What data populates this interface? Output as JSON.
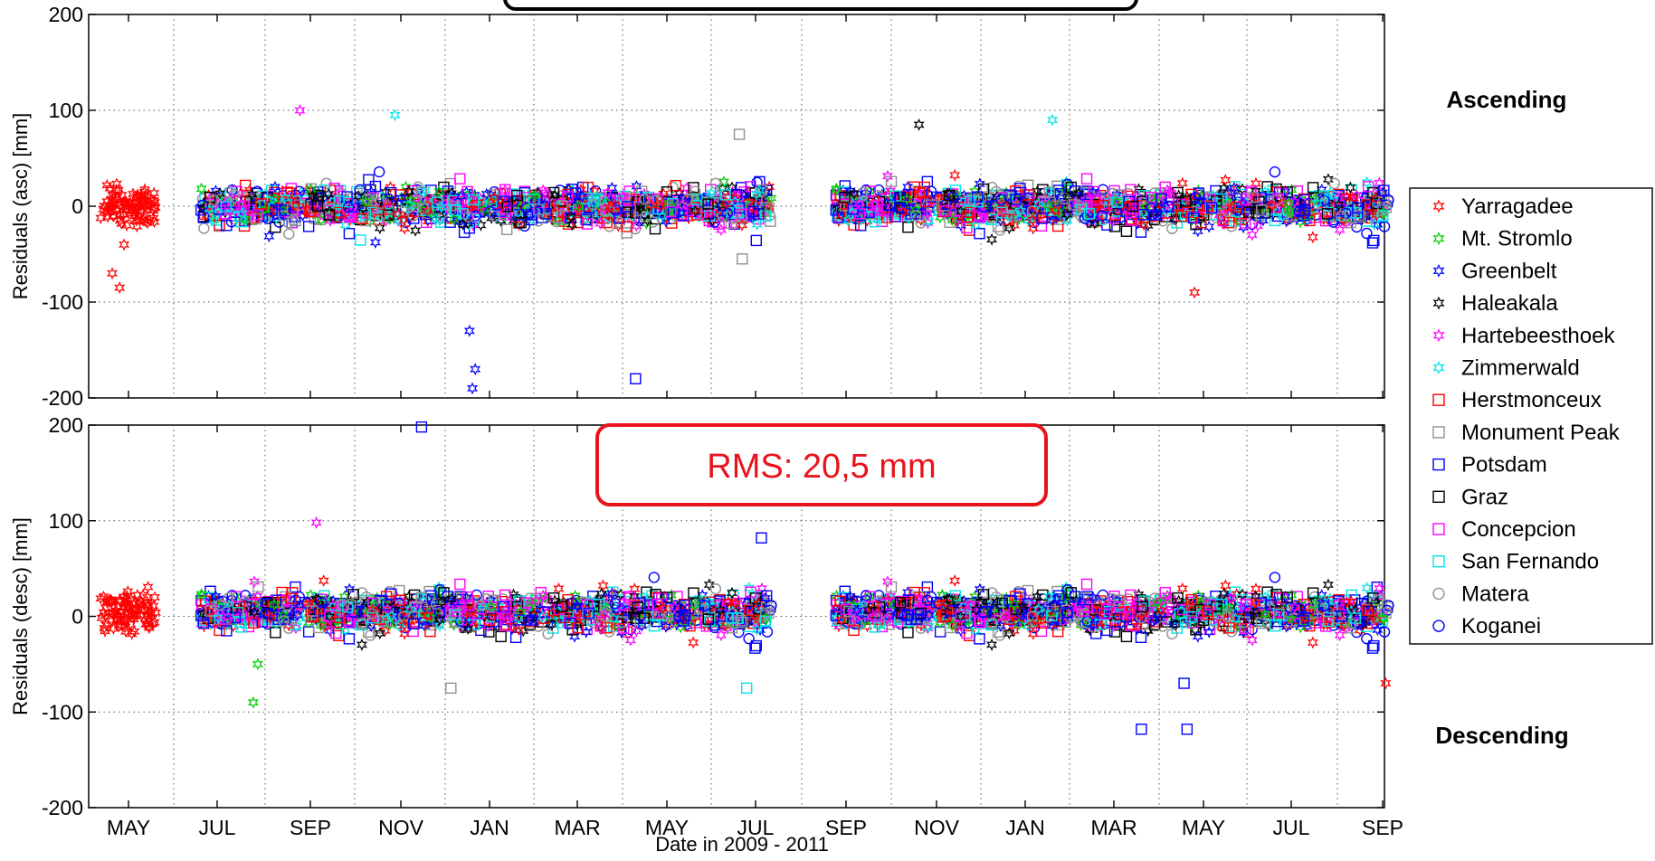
{
  "chart_data": {
    "type": "scatter",
    "xlabel": "Date in 2009 - 2011",
    "x_start": "2009-04",
    "x_end": "2011-09",
    "x_ticks": [
      "MAY",
      "JUL",
      "SEP",
      "NOV",
      "JAN",
      "MAR",
      "MAY",
      "JUL",
      "SEP",
      "NOV",
      "JAN",
      "MAR",
      "MAY",
      "JUL",
      "SEP"
    ],
    "grid": true,
    "legend_placement": "right",
    "annotation": "RMS: 20,5 mm",
    "panels": [
      {
        "id": "asc",
        "ylabel": "Residuals (asc) [mm]",
        "side_label": "Ascending",
        "ylim": [
          -200,
          200
        ],
        "y_ticks": [
          "200",
          "100",
          "0",
          "-100",
          "-200"
        ]
      },
      {
        "id": "desc",
        "ylabel": "Residuals (desc) [mm]",
        "side_label": "Descending",
        "ylim": [
          -200,
          200
        ],
        "y_ticks": [
          "200",
          "100",
          "0",
          "-100",
          "-200"
        ]
      }
    ],
    "series": [
      {
        "name": "Yarragadee",
        "marker": "hexagram",
        "color": "#ff0000"
      },
      {
        "name": "Mt. Stromlo",
        "marker": "hexagram",
        "color": "#00cc00"
      },
      {
        "name": "Greenbelt",
        "marker": "hexagram",
        "color": "#0000ff"
      },
      {
        "name": "Haleakala",
        "marker": "hexagram",
        "color": "#000000"
      },
      {
        "name": "Hartebeesthoek",
        "marker": "hexagram",
        "color": "#ff00ff"
      },
      {
        "name": "Zimmerwald",
        "marker": "hexagram",
        "color": "#00e5e5"
      },
      {
        "name": "Herstmonceux",
        "marker": "square",
        "color": "#ff0000"
      },
      {
        "name": "Monument Peak",
        "marker": "square",
        "color": "#909090"
      },
      {
        "name": "Potsdam",
        "marker": "square",
        "color": "#0000ff"
      },
      {
        "name": "Graz",
        "marker": "square",
        "color": "#000000"
      },
      {
        "name": "Concepcion",
        "marker": "square",
        "color": "#ff00ff"
      },
      {
        "name": "San Fernando",
        "marker": "square",
        "color": "#00e5e5"
      },
      {
        "name": "Matera",
        "marker": "circle",
        "color": "#909090"
      },
      {
        "name": "Koganei",
        "marker": "circle",
        "color": "#0000ff"
      }
    ],
    "data_note_groups": {
      "asc": [
        {
          "s": 0,
          "x": "2009-04-20",
          "y": -70
        },
        {
          "s": 0,
          "x": "2009-04-25",
          "y": -85
        },
        {
          "s": 0,
          "x": "2009-04-28",
          "y": -40
        },
        {
          "s": 2,
          "x": "2009-12-20",
          "y": -190
        },
        {
          "s": 2,
          "x": "2009-12-22",
          "y": -170
        },
        {
          "s": 2,
          "x": "2009-12-18",
          "y": -130
        },
        {
          "s": 8,
          "x": "2010-04-10",
          "y": -180
        },
        {
          "s": 4,
          "x": "2009-08-25",
          "y": 100
        },
        {
          "s": 5,
          "x": "2009-10-28",
          "y": 95
        },
        {
          "s": 3,
          "x": "2010-10-20",
          "y": 85
        },
        {
          "s": 5,
          "x": "2011-01-20",
          "y": 90
        },
        {
          "s": 7,
          "x": "2010-06-20",
          "y": 75
        },
        {
          "s": 7,
          "x": "2010-06-22",
          "y": -55
        },
        {
          "s": 0,
          "x": "2011-04-25",
          "y": -90
        }
      ],
      "desc": [
        {
          "s": 8,
          "x": "2009-11-15",
          "y": 198
        },
        {
          "s": 1,
          "x": "2009-07-25",
          "y": -90
        },
        {
          "s": 1,
          "x": "2009-07-28",
          "y": -50
        },
        {
          "s": 4,
          "x": "2009-09-05",
          "y": 98
        },
        {
          "s": 7,
          "x": "2009-12-05",
          "y": -75
        },
        {
          "s": 11,
          "x": "2010-06-25",
          "y": -75
        },
        {
          "s": 8,
          "x": "2010-07-05",
          "y": 82
        },
        {
          "s": 8,
          "x": "2011-03-20",
          "y": -118
        },
        {
          "s": 8,
          "x": "2011-04-20",
          "y": -118
        },
        {
          "s": 8,
          "x": "2011-04-18",
          "y": -70
        },
        {
          "s": 0,
          "x": "2011-09-03",
          "y": -70
        }
      ]
    }
  }
}
